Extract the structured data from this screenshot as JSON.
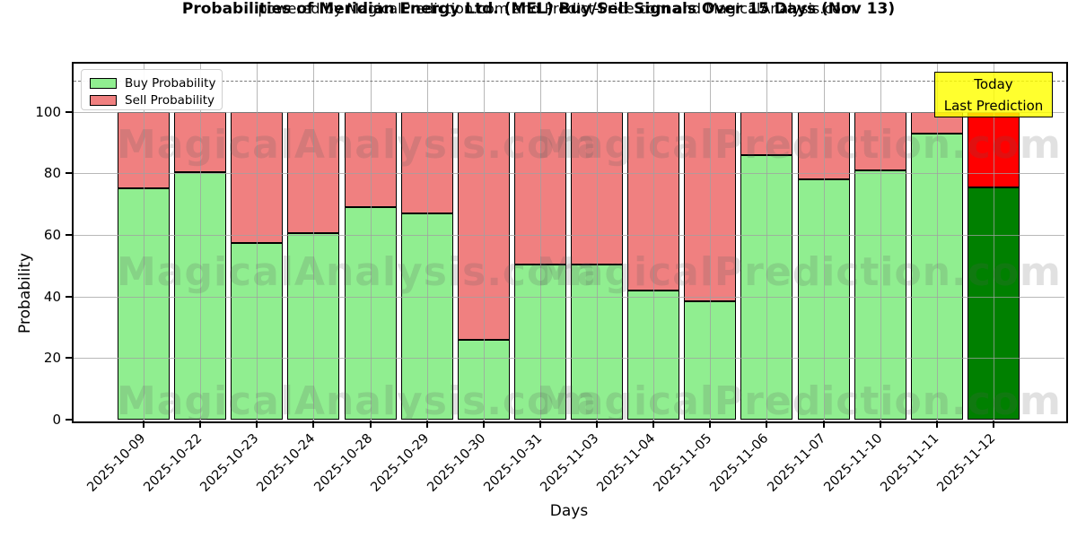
{
  "chart_data": {
    "type": "bar",
    "stacked": true,
    "title": "Probabilities of Meridian Energy Ltd. (MEL) Buy/Sell Signals Over 15 Days (Nov 13)",
    "subtitle": "powered by MagicalPrediction.com and Predict-Price.com and MagicalAnalysis.com",
    "xlabel": "Days",
    "ylabel": "Probability",
    "categories": [
      "2025-10-09",
      "2025-10-22",
      "2025-10-23",
      "2025-10-24",
      "2025-10-28",
      "2025-10-29",
      "2025-10-30",
      "2025-10-31",
      "2025-11-03",
      "2025-11-04",
      "2025-11-05",
      "2025-11-06",
      "2025-11-07",
      "2025-11-10",
      "2025-11-11",
      "2025-11-12"
    ],
    "series": [
      {
        "name": "Buy Probability",
        "color": "#90EE90",
        "today_color": "#008000",
        "values": [
          75,
          80.5,
          57.5,
          60.5,
          69,
          67,
          26,
          50.5,
          50.5,
          42,
          38.5,
          86,
          78,
          81,
          93,
          75.5
        ]
      },
      {
        "name": "Sell Probability",
        "color": "#F08080",
        "today_color": "#FF0000",
        "values": [
          25,
          19.5,
          42.5,
          39.5,
          31,
          33,
          74,
          49.5,
          49.5,
          58,
          61.5,
          14,
          22,
          19,
          7,
          24.5
        ]
      }
    ],
    "yticks": [
      0,
      20,
      40,
      60,
      80,
      100
    ],
    "ylim": [
      0,
      115.6
    ],
    "grid": true,
    "threshold_line": {
      "y": 110,
      "style": "dashed",
      "color": "#7a7a7a"
    },
    "legend": {
      "position": "upper left"
    },
    "annotation": {
      "line1": "Today",
      "line2": "Last Prediction",
      "bg": "#FFFF00"
    },
    "watermarks": [
      "MagicalAnalysis.com",
      "MagicalPrediction.com"
    ]
  }
}
